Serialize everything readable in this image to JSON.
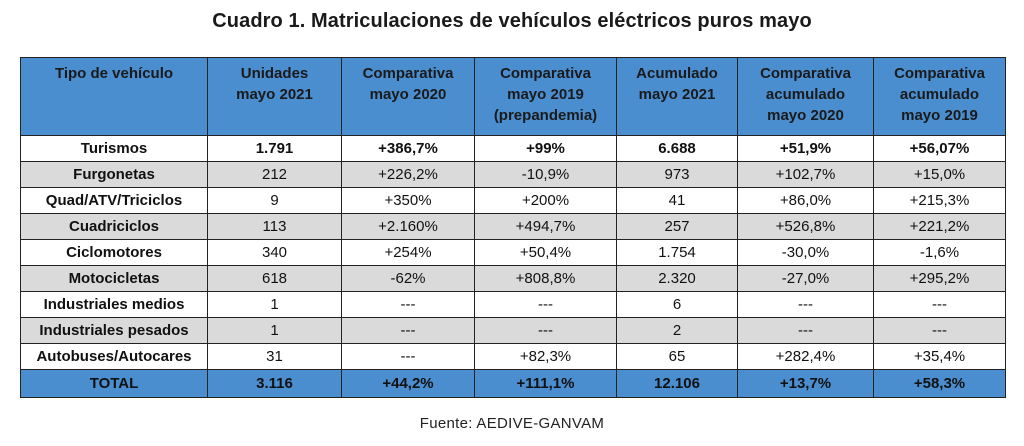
{
  "title": "Cuadro 1. Matriculaciones de vehículos eléctricos puros mayo",
  "table": {
    "headers": [
      [
        "Tipo de vehículo"
      ],
      [
        "Unidades",
        "mayo 2021"
      ],
      [
        "Comparativa",
        "mayo 2020"
      ],
      [
        "Comparativa",
        "mayo 2019",
        "(prepandemia)"
      ],
      [
        "Acumulado",
        "mayo 2021"
      ],
      [
        "Comparativa",
        "acumulado",
        "mayo 2020"
      ],
      [
        "Comparativa",
        "acumulado",
        "mayo 2019"
      ]
    ],
    "rows": [
      [
        "Turismos",
        "1.791",
        "+386,7%",
        "+99%",
        "6.688",
        "+51,9%",
        "+56,07%"
      ],
      [
        "Furgonetas",
        "212",
        "+226,2%",
        "-10,9%",
        "973",
        "+102,7%",
        "+15,0%"
      ],
      [
        "Quad/ATV/Triciclos",
        "9",
        "+350%",
        "+200%",
        "41",
        "+86,0%",
        "+215,3%"
      ],
      [
        "Cuadriciclos",
        "113",
        "+2.160%",
        "+494,7%",
        "257",
        "+526,8%",
        "+221,2%"
      ],
      [
        "Ciclomotores",
        "340",
        "+254%",
        "+50,4%",
        "1.754",
        "-30,0%",
        "-1,6%"
      ],
      [
        "Motocicletas",
        "618",
        "-62%",
        "+808,8%",
        "2.320",
        "-27,0%",
        "+295,2%"
      ],
      [
        "Industriales medios",
        "1",
        "---",
        "---",
        "6",
        "---",
        "---"
      ],
      [
        "Industriales pesados",
        "1",
        "---",
        "---",
        "2",
        "---",
        "---"
      ],
      [
        "Autobuses/Autocares",
        "31",
        "---",
        "+82,3%",
        "65",
        "+282,4%",
        "+35,4%"
      ]
    ],
    "total": [
      "TOTAL",
      "3.116",
      "+44,2%",
      "+111,1%",
      "12.106",
      "+13,7%",
      "+58,3%"
    ]
  },
  "source": "Fuente: AEDIVE-GANVAM",
  "colors": {
    "header_bg": "#4b8ed0",
    "row_alt_bg": "#dadada",
    "border": "#222222"
  }
}
